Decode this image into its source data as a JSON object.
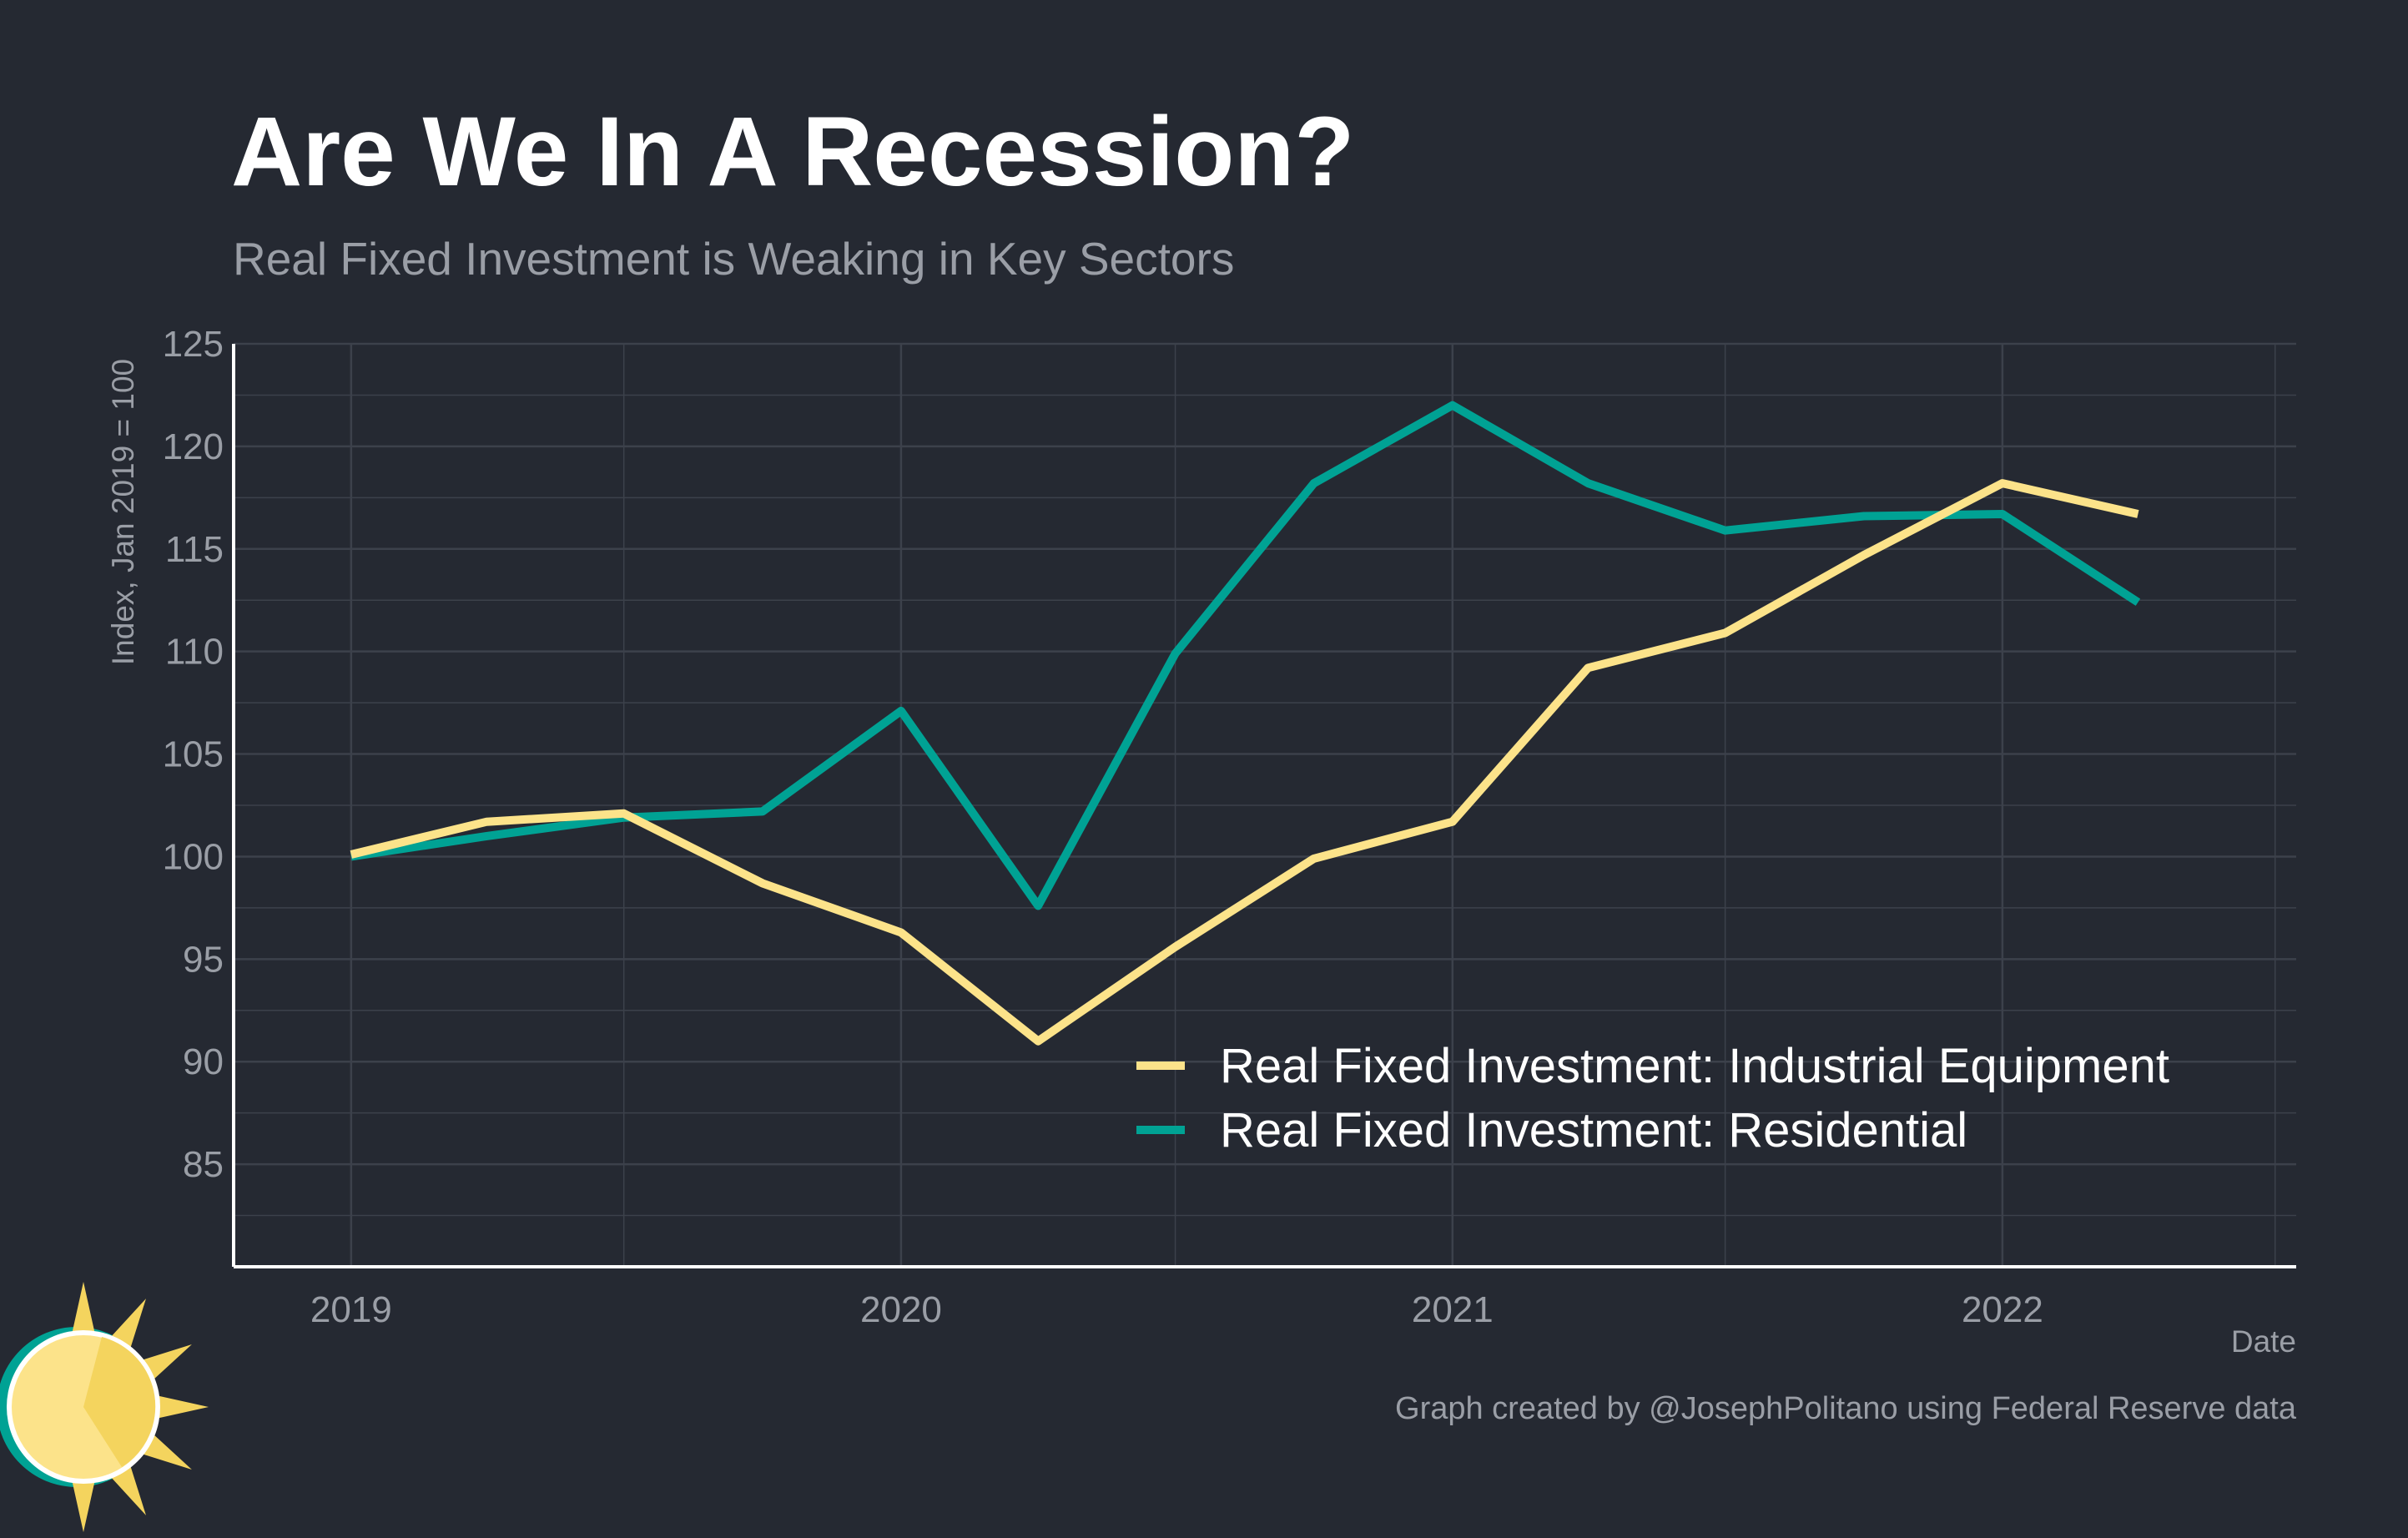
{
  "title": "Are We In A Recession?",
  "subtitle": "Real Fixed Investment is Weaking in Key Sectors",
  "caption": "Graph created by @JosephPolitano using Federal Reserve data",
  "colors": {
    "background": "#252932",
    "industrial": "#FCE38A",
    "residential": "#00A294",
    "grid": "#3C414B",
    "tick_text": "#9A9EA6",
    "title": "#FFFFFF",
    "legend_text": "#FFFFFF"
  },
  "logo": {
    "icon": "sun-icon"
  },
  "chart_data": {
    "type": "line",
    "title": "Are We In A Recession?",
    "subtitle": "Real Fixed Investment is Weaking in Key Sectors",
    "xlabel": "Date",
    "ylabel": "Index, Jan 2019 = 100",
    "xlim": [
      "2018-10-15",
      "2022-07-15"
    ],
    "ylim": [
      80,
      125
    ],
    "x_ticks": [
      "2019-01-01",
      "2020-01-01",
      "2021-01-01",
      "2022-01-01"
    ],
    "x_tick_labels": [
      "2019",
      "2020",
      "2021",
      "2022"
    ],
    "y_ticks": [
      85,
      90,
      95,
      100,
      105,
      110,
      115,
      120,
      125
    ],
    "y_tick_labels": [
      "85",
      "90",
      "95",
      "100",
      "105",
      "110",
      "115",
      "120",
      "125"
    ],
    "grid": true,
    "legend_position": "bottom-right",
    "x": [
      "2019-01-01",
      "2019-04-01",
      "2019-07-01",
      "2019-10-01",
      "2020-01-01",
      "2020-04-01",
      "2020-07-01",
      "2020-10-01",
      "2021-01-01",
      "2021-04-01",
      "2021-07-01",
      "2021-10-01",
      "2022-01-01",
      "2022-04-01"
    ],
    "series": [
      {
        "name": "Real Fixed Investment: Industrial Equipment",
        "color": "#FCE38A",
        "values": [
          100.1,
          101.7,
          102.1,
          98.7,
          96.3,
          91.0,
          95.6,
          99.9,
          101.7,
          109.2,
          110.9,
          114.7,
          118.2,
          116.7
        ]
      },
      {
        "name": "Real Fixed Investment: Residential",
        "color": "#00A294",
        "values": [
          100.0,
          101.0,
          101.9,
          102.2,
          107.1,
          97.6,
          109.9,
          118.2,
          122.0,
          118.2,
          115.9,
          116.6,
          116.7,
          112.4
        ]
      }
    ]
  }
}
